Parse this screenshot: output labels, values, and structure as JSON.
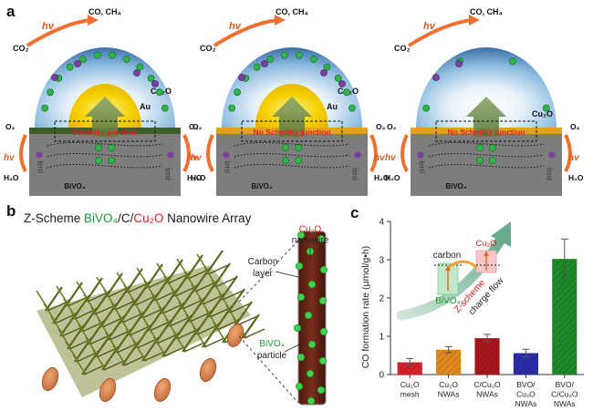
{
  "panel_a": {
    "letter": "a",
    "diagrams": [
      {
        "junction_label": "Schottky junction",
        "metal_label": "Au",
        "shell_label": "Cu₂O",
        "substrate_label": "BiVO₄",
        "has_metal": true
      },
      {
        "junction_label": "No Schottky junction",
        "metal_label": "Au",
        "shell_label": "Cu₂O",
        "substrate_label": "BiVO₄",
        "has_metal": true
      },
      {
        "junction_label": "No Schottky junction",
        "metal_label": "",
        "shell_label": "Cu₂O",
        "substrate_label": "BiVO₄",
        "has_metal": false
      }
    ],
    "labels": {
      "products": "CO, CH₄",
      "reactant_co2": "CO₂",
      "photon": "hv",
      "oxygen": "O₂",
      "water": "H₂O",
      "facet_010": "{010}",
      "facet_110": "{110}"
    }
  },
  "panel_b": {
    "letter": "b",
    "title_prefix": "Z-Scheme ",
    "title_bivo4": "BiVO₄",
    "title_sep1": "/C/",
    "title_cu2o": "Cu₂O",
    "title_suffix": " Nanowire Array",
    "label_cu2o": "Cu₂O",
    "label_nanowire": "nanowire",
    "label_carbon": "Carbon",
    "label_layer": "layer",
    "label_bivo4": "BiVO₄",
    "label_particle": "particle"
  },
  "panel_c": {
    "letter": "c",
    "inset": {
      "carbon": "carbon",
      "cu2o": "Cu₂O",
      "bivo4": "BiVO₄",
      "zscheme": "Z-scheme",
      "charge_flow": "charge flow"
    }
  },
  "colors": {
    "bivo4_green": "#1a9b2e",
    "cu2o_red": "#d32020",
    "photon_orange": "#f07030",
    "gold": "#f5d000",
    "junction_red": "#e02020"
  },
  "chart_data": {
    "type": "bar",
    "ylabel": "CO formation rate (μmol/g•h)",
    "ylim": [
      0,
      4
    ],
    "yticks": [
      "0",
      "1",
      "2",
      "3",
      "4"
    ],
    "categories": [
      [
        "Cu₂O",
        "mesh"
      ],
      [
        "Cu₂O",
        "NWAs"
      ],
      [
        "C/Cu₂O",
        "NWAs"
      ],
      [
        "BVO/",
        "Cu₂O",
        "NWAs"
      ],
      [
        "BVO/",
        "C/Cu₂O",
        "NWAs"
      ]
    ],
    "values": [
      0.32,
      0.65,
      0.95,
      0.56,
      3.02
    ],
    "errors": [
      0.1,
      0.08,
      0.1,
      0.1,
      0.52
    ],
    "colors": [
      "#d8202a",
      "#e08a1e",
      "#a8161e",
      "#2a2ea6",
      "#1f8a2a"
    ],
    "grid": false
  }
}
